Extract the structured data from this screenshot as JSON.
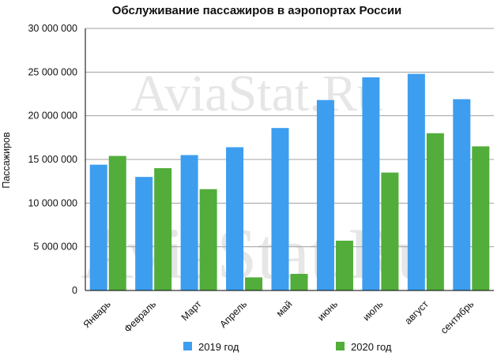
{
  "chart_data": {
    "type": "bar",
    "title": "Обслуживание пассажиров в аэропортах России",
    "ylabel": "Пассажиров",
    "xlabel": "",
    "ylim": [
      0,
      30000000
    ],
    "yticks": [
      0,
      5000000,
      10000000,
      15000000,
      20000000,
      25000000,
      30000000
    ],
    "ytick_labels": [
      "0",
      "5 000 000",
      "10 000 000",
      "15 000 000",
      "20 000 000",
      "25 000 000",
      "30 000 000"
    ],
    "categories": [
      "Январь",
      "Февраль",
      "Март",
      "Апрель",
      "май",
      "июнь",
      "июль",
      "август",
      "сентябрь"
    ],
    "series": [
      {
        "name": "2019 год",
        "color": "#3d9ef0",
        "values": [
          14400000,
          13000000,
          15500000,
          16400000,
          18600000,
          21800000,
          24400000,
          24800000,
          21900000
        ]
      },
      {
        "name": "2020 год",
        "color": "#52ad3a",
        "values": [
          15400000,
          14000000,
          11600000,
          1500000,
          1900000,
          5700000,
          13500000,
          18000000,
          16500000
        ]
      }
    ],
    "grid": true,
    "legend": "bottom"
  },
  "watermark": "AviaStat.Ru"
}
